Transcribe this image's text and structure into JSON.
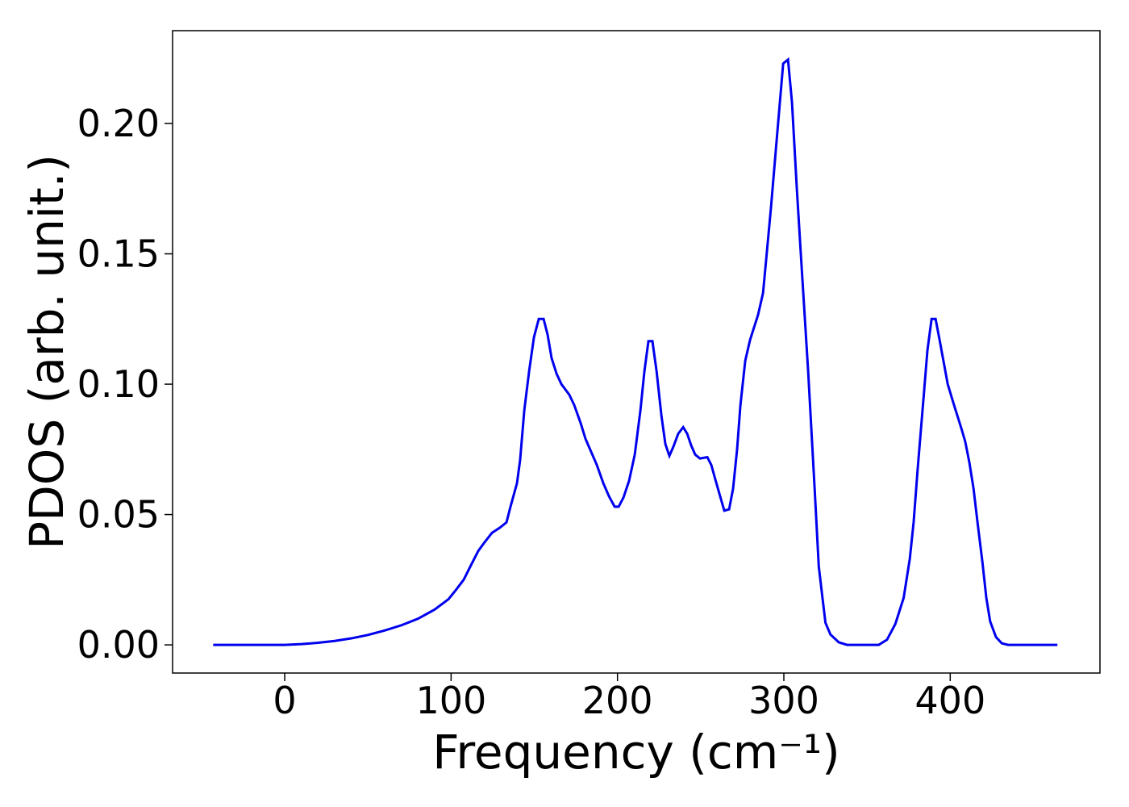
{
  "chart_data": {
    "type": "line",
    "xlabel": "Frequency (cm⁻¹)",
    "ylabel": "PDOS (arb. unit.)",
    "xlim": [
      -67.4,
      490
    ],
    "ylim": [
      -0.0108,
      0.2356
    ],
    "xticks": [
      0,
      100,
      200,
      300,
      400
    ],
    "yticks": [
      {
        "value": 0,
        "label": "0.00"
      },
      {
        "value": 0.05,
        "label": "0.05"
      },
      {
        "value": 0.1,
        "label": "0.10"
      },
      {
        "value": 0.15,
        "label": "0.15"
      },
      {
        "value": 0.2,
        "label": "0.20"
      }
    ],
    "series": [
      {
        "color": "#0000ee",
        "x": [
          -43,
          0,
          10,
          20,
          30,
          40,
          50,
          60,
          70,
          80,
          90,
          98.4,
          102.8,
          107.6,
          111.5,
          116.3,
          119.7,
          124.6,
          129.4,
          133.3,
          135.7,
          139.6,
          141.5,
          144,
          146.9,
          149.8,
          152.7,
          155.6,
          158,
          160.4,
          163.4,
          166.3,
          171,
          174,
          177.9,
          180.8,
          187.6,
          191.5,
          194.9,
          198.3,
          200.7,
          203.6,
          207,
          210.4,
          213.8,
          216.2,
          218.6,
          221,
          223.5,
          226.4,
          228.8,
          231.2,
          233.6,
          236.5,
          239.5,
          241.9,
          244.3,
          246.7,
          249.6,
          254,
          256.4,
          258.8,
          261.7,
          264.2,
          267.1,
          269.5,
          271.9,
          273.9,
          276.8,
          279.7,
          284.5,
          287.5,
          289.4,
          292.3,
          295.2,
          297.6,
          299.6,
          302.5,
          304.9,
          307.8,
          310.2,
          314.6,
          318.5,
          321,
          325,
          328,
          333,
          338,
          357,
          362,
          367,
          372,
          375.7,
          378,
          380.5,
          384,
          386.3,
          388.8,
          391.2,
          393.6,
          398.5,
          401.8,
          406.7,
          409,
          411.5,
          414,
          416.4,
          419.3,
          421.7,
          424,
          427.5,
          431,
          434.8,
          464.4
        ],
        "values": [
          0,
          0,
          0.0003,
          0.0008,
          0.0015,
          0.0025,
          0.0038,
          0.0055,
          0.0075,
          0.01,
          0.0135,
          0.0175,
          0.021,
          0.025,
          0.03,
          0.036,
          0.039,
          0.043,
          0.045,
          0.047,
          0.053,
          0.062,
          0.071,
          0.09,
          0.105,
          0.118,
          0.125,
          0.125,
          0.119,
          0.11,
          0.104,
          0.1,
          0.096,
          0.092,
          0.085,
          0.079,
          0.069,
          0.062,
          0.057,
          0.053,
          0.053,
          0.0565,
          0.063,
          0.073,
          0.09,
          0.105,
          0.1165,
          0.1165,
          0.105,
          0.088,
          0.077,
          0.0725,
          0.076,
          0.081,
          0.0835,
          0.081,
          0.0765,
          0.073,
          0.0715,
          0.072,
          0.069,
          0.0635,
          0.057,
          0.0515,
          0.052,
          0.06,
          0.075,
          0.092,
          0.109,
          0.117,
          0.1266,
          0.135,
          0.148,
          0.168,
          0.19,
          0.208,
          0.223,
          0.2245,
          0.208,
          0.175,
          0.15,
          0.105,
          0.06,
          0.03,
          0.0085,
          0.004,
          0.001,
          0,
          0,
          0.002,
          0.008,
          0.018,
          0.033,
          0.047,
          0.068,
          0.095,
          0.113,
          0.125,
          0.125,
          0.117,
          0.1,
          0.093,
          0.083,
          0.078,
          0.07,
          0.06,
          0.047,
          0.032,
          0.018,
          0.009,
          0.003,
          0.0006,
          0,
          0
        ]
      }
    ]
  }
}
